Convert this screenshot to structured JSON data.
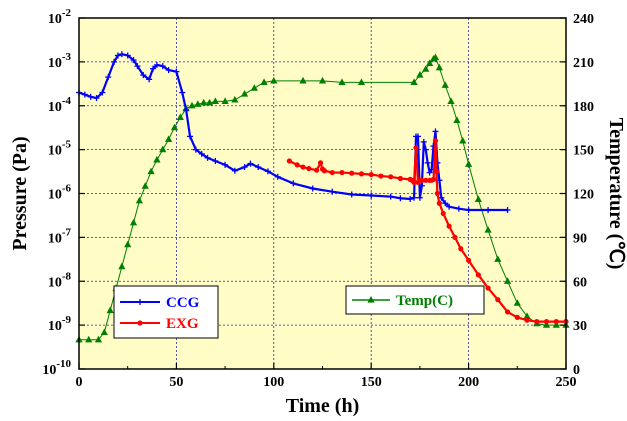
{
  "chart_data": {
    "type": "line",
    "xlabel": "Time (h)",
    "ylabel_left": "Pressure (Pa)",
    "ylabel_right": "Temperature (℃)",
    "xlim": [
      0,
      250
    ],
    "x_ticks": [
      "0",
      "50",
      "100",
      "150",
      "200",
      "250"
    ],
    "ylim_left_log10": [
      -10,
      -2
    ],
    "y_left_scale": "log",
    "y_left_tick_mantissa": "10",
    "y_left_tick_exponents": [
      "-10",
      "-9",
      "-8",
      "-7",
      "-6",
      "-5",
      "-4",
      "-3",
      "-2"
    ],
    "ylim_right": [
      0,
      240
    ],
    "y_right_ticks": [
      "0",
      "30",
      "60",
      "90",
      "120",
      "150",
      "180",
      "210",
      "240"
    ],
    "grid": true,
    "background_color": "#fffcc6",
    "series": [
      {
        "name": "CCG",
        "axis": "left",
        "color": "#0000ff",
        "marker": "plus",
        "x": [
          0,
          3,
          6,
          9,
          12,
          15,
          18,
          20,
          22,
          25,
          28,
          30,
          33,
          36,
          38,
          40,
          43,
          46,
          50,
          53,
          55,
          57,
          60,
          63,
          66,
          70,
          75,
          80,
          85,
          88,
          92,
          97,
          102,
          110,
          120,
          130,
          140,
          150,
          160,
          165,
          170,
          172,
          173,
          174,
          175,
          176,
          177,
          178,
          179,
          180,
          181,
          182,
          183,
          184,
          185,
          186,
          188,
          190,
          195,
          200,
          210,
          220
        ],
        "y": [
          0.0002,
          0.00018,
          0.00016,
          0.00015,
          0.0002,
          0.00045,
          0.001,
          0.0014,
          0.0015,
          0.0014,
          0.0011,
          0.0008,
          0.0005,
          0.0004,
          0.0007,
          0.00085,
          0.0008,
          0.00065,
          0.0006,
          0.0002,
          8e-05,
          2e-05,
          1e-05,
          8e-06,
          6.5e-06,
          5.5e-06,
          4.5e-06,
          3.3e-06,
          4e-06,
          4.8e-06,
          4e-06,
          3.2e-06,
          2.4e-06,
          1.7e-06,
          1.3e-06,
          1.1e-06,
          9.5e-07,
          9e-07,
          8.5e-07,
          7.8e-07,
          7.5e-07,
          8e-07,
          2e-05,
          2e-05,
          8e-07,
          1.5e-06,
          1.5e-05,
          1e-05,
          5e-06,
          3e-06,
          3.5e-06,
          1.2e-05,
          2.6e-05,
          5e-06,
          2e-06,
          8e-07,
          6e-07,
          5e-07,
          4.5e-07,
          4.2e-07,
          4.2e-07,
          4.2e-07
        ]
      },
      {
        "name": "EXG",
        "axis": "left",
        "color": "#ff0000",
        "marker": "circle",
        "x": [
          108,
          112,
          115,
          118,
          122,
          124,
          125,
          126,
          130,
          135,
          140,
          145,
          150,
          155,
          160,
          165,
          170,
          171,
          172,
          173,
          174,
          175,
          176,
          178,
          180,
          181,
          182,
          183,
          183.5,
          184,
          185,
          187,
          190,
          193,
          196,
          200,
          205,
          210,
          215,
          220,
          225,
          230,
          235,
          240,
          245,
          250
        ],
        "y": [
          5.5e-06,
          4.5e-06,
          4e-06,
          3.7e-06,
          3.4e-06,
          5e-06,
          3.6e-06,
          3.3e-06,
          3e-06,
          3e-06,
          2.9e-06,
          2.8e-06,
          2.7e-06,
          2.5e-06,
          2.4e-06,
          2.2e-06,
          2.1e-06,
          2e-06,
          1.8e-06,
          1.1e-05,
          1.8e-06,
          2e-06,
          2e-06,
          2e-06,
          2e-06,
          2e-06,
          2.1e-06,
          1.6e-05,
          3.2e-06,
          1e-06,
          6e-07,
          3.5e-07,
          1.8e-07,
          1e-07,
          5.5e-08,
          3e-08,
          1.4e-08,
          7e-09,
          3.8e-09,
          2e-09,
          1.5e-09,
          1.3e-09,
          1.2e-09,
          1.2e-09,
          1.2e-09,
          1.2e-09
        ]
      },
      {
        "name": "Temp(C)",
        "axis": "right",
        "color": "#008000",
        "marker": "triangle",
        "x": [
          0,
          5,
          10,
          13,
          16,
          19,
          22,
          25,
          28,
          31,
          34,
          37,
          40,
          43,
          46,
          49,
          52,
          55,
          58,
          61,
          64,
          67,
          70,
          75,
          80,
          85,
          90,
          95,
          100,
          115,
          125,
          135,
          145,
          172,
          175,
          178,
          180,
          182,
          183,
          185,
          188,
          191,
          194,
          197,
          200,
          205,
          210,
          215,
          220,
          225,
          230,
          235,
          240,
          245,
          250
        ],
        "y": [
          20,
          20,
          20,
          25,
          40,
          55,
          70,
          85,
          100,
          115,
          125,
          135,
          143,
          150,
          157,
          165,
          172,
          178,
          180,
          181,
          182,
          182,
          183,
          183,
          184,
          188,
          192,
          196,
          197,
          197,
          197,
          196,
          196,
          196,
          201,
          205,
          209,
          212,
          213,
          206,
          194,
          183,
          170,
          156,
          140,
          116,
          95,
          75,
          60,
          45,
          36,
          31,
          30,
          30,
          30
        ]
      }
    ],
    "legend": [
      {
        "name": "CCG",
        "placement": "bottom-left",
        "color": "#0000ff"
      },
      {
        "name": "EXG",
        "placement": "bottom-left",
        "color": "#ff0000"
      },
      {
        "name": "Temp(C)",
        "placement": "bottom-center",
        "color": "#008000"
      }
    ]
  }
}
